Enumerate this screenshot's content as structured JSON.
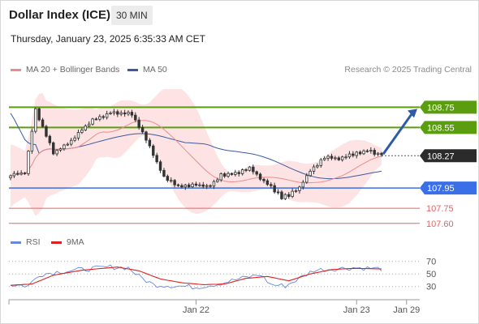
{
  "header": {
    "title": "Dollar Index (ICE)",
    "timeframe": "30 MIN",
    "datetime": "Thursday, January 23, 2025 6:35:33 AM CET"
  },
  "legend": {
    "ma20": "MA 20 + Bollinger Bands",
    "ma50": "MA 50",
    "rsi": "RSI",
    "ma9": "9MA",
    "credit": "Research © 2025 Trading Central"
  },
  "colors": {
    "ma20": "#f08a8a",
    "ma50": "#3b5aa0",
    "band": "#fde3e3",
    "target": "#5a9e0f",
    "pivot": "#3a6fe8",
    "support": "#e06666",
    "last": "#2b2b2b",
    "arrow": "#2f5aa8",
    "rsi": "#6688dd",
    "rsi_ma": "#e02020"
  },
  "chart_data": {
    "type": "candlestick",
    "y_range": [
      107.55,
      108.93
    ],
    "levels": [
      {
        "value": 108.75,
        "label": "108.75",
        "kind": "target"
      },
      {
        "value": 108.55,
        "label": "108.55",
        "kind": "target"
      },
      {
        "value": 108.27,
        "label": "108.27",
        "kind": "last"
      },
      {
        "value": 107.95,
        "label": "107.95",
        "kind": "pivot"
      },
      {
        "value": 107.75,
        "label": "107.75",
        "kind": "support"
      },
      {
        "value": 107.6,
        "label": "107.60",
        "kind": "support"
      }
    ],
    "x_labels": [
      "Jan 22",
      "Jan 23",
      "Jan 29"
    ],
    "x_label_bars": [
      52,
      97,
      111
    ],
    "anchors": [
      [
        0,
        108.08
      ],
      [
        4,
        108.1
      ],
      [
        7,
        108.72
      ],
      [
        12,
        108.3
      ],
      [
        17,
        108.42
      ],
      [
        22,
        108.6
      ],
      [
        28,
        108.7
      ],
      [
        34,
        108.68
      ],
      [
        37,
        108.5
      ],
      [
        40,
        108.28
      ],
      [
        43,
        108.05
      ],
      [
        47,
        107.97
      ],
      [
        52,
        107.98
      ],
      [
        56,
        107.97
      ],
      [
        59,
        108.08
      ],
      [
        64,
        108.1
      ],
      [
        67,
        108.15
      ],
      [
        70,
        108.05
      ],
      [
        73,
        107.96
      ],
      [
        76,
        107.86
      ],
      [
        78,
        107.88
      ],
      [
        81,
        107.96
      ],
      [
        84,
        108.12
      ],
      [
        88,
        108.25
      ],
      [
        92,
        108.24
      ],
      [
        96,
        108.28
      ],
      [
        100,
        108.32
      ],
      [
        102,
        108.3
      ],
      [
        104,
        108.28
      ]
    ],
    "bar_count": 105,
    "forecast_arrow": {
      "from": 108.27,
      "to": 108.75
    },
    "rsi": {
      "y_ticks": [
        70,
        50,
        30
      ],
      "range": [
        18,
        80
      ],
      "anchors": [
        [
          0,
          33
        ],
        [
          5,
          31
        ],
        [
          8,
          49
        ],
        [
          14,
          54
        ],
        [
          20,
          57
        ],
        [
          28,
          61
        ],
        [
          33,
          60
        ],
        [
          36,
          46
        ],
        [
          40,
          33
        ],
        [
          46,
          31
        ],
        [
          52,
          29
        ],
        [
          58,
          34
        ],
        [
          64,
          42
        ],
        [
          70,
          49
        ],
        [
          73,
          33
        ],
        [
          77,
          31
        ],
        [
          81,
          43
        ],
        [
          85,
          56
        ],
        [
          90,
          58
        ],
        [
          96,
          60
        ],
        [
          101,
          59
        ],
        [
          104,
          58
        ]
      ],
      "ma_anchors": [
        [
          0,
          32
        ],
        [
          6,
          34
        ],
        [
          12,
          48
        ],
        [
          20,
          56
        ],
        [
          30,
          61
        ],
        [
          36,
          55
        ],
        [
          42,
          42
        ],
        [
          48,
          36
        ],
        [
          54,
          33
        ],
        [
          60,
          34
        ],
        [
          66,
          43
        ],
        [
          72,
          46
        ],
        [
          78,
          39
        ],
        [
          84,
          50
        ],
        [
          90,
          57
        ],
        [
          96,
          59
        ],
        [
          104,
          58
        ]
      ]
    }
  }
}
